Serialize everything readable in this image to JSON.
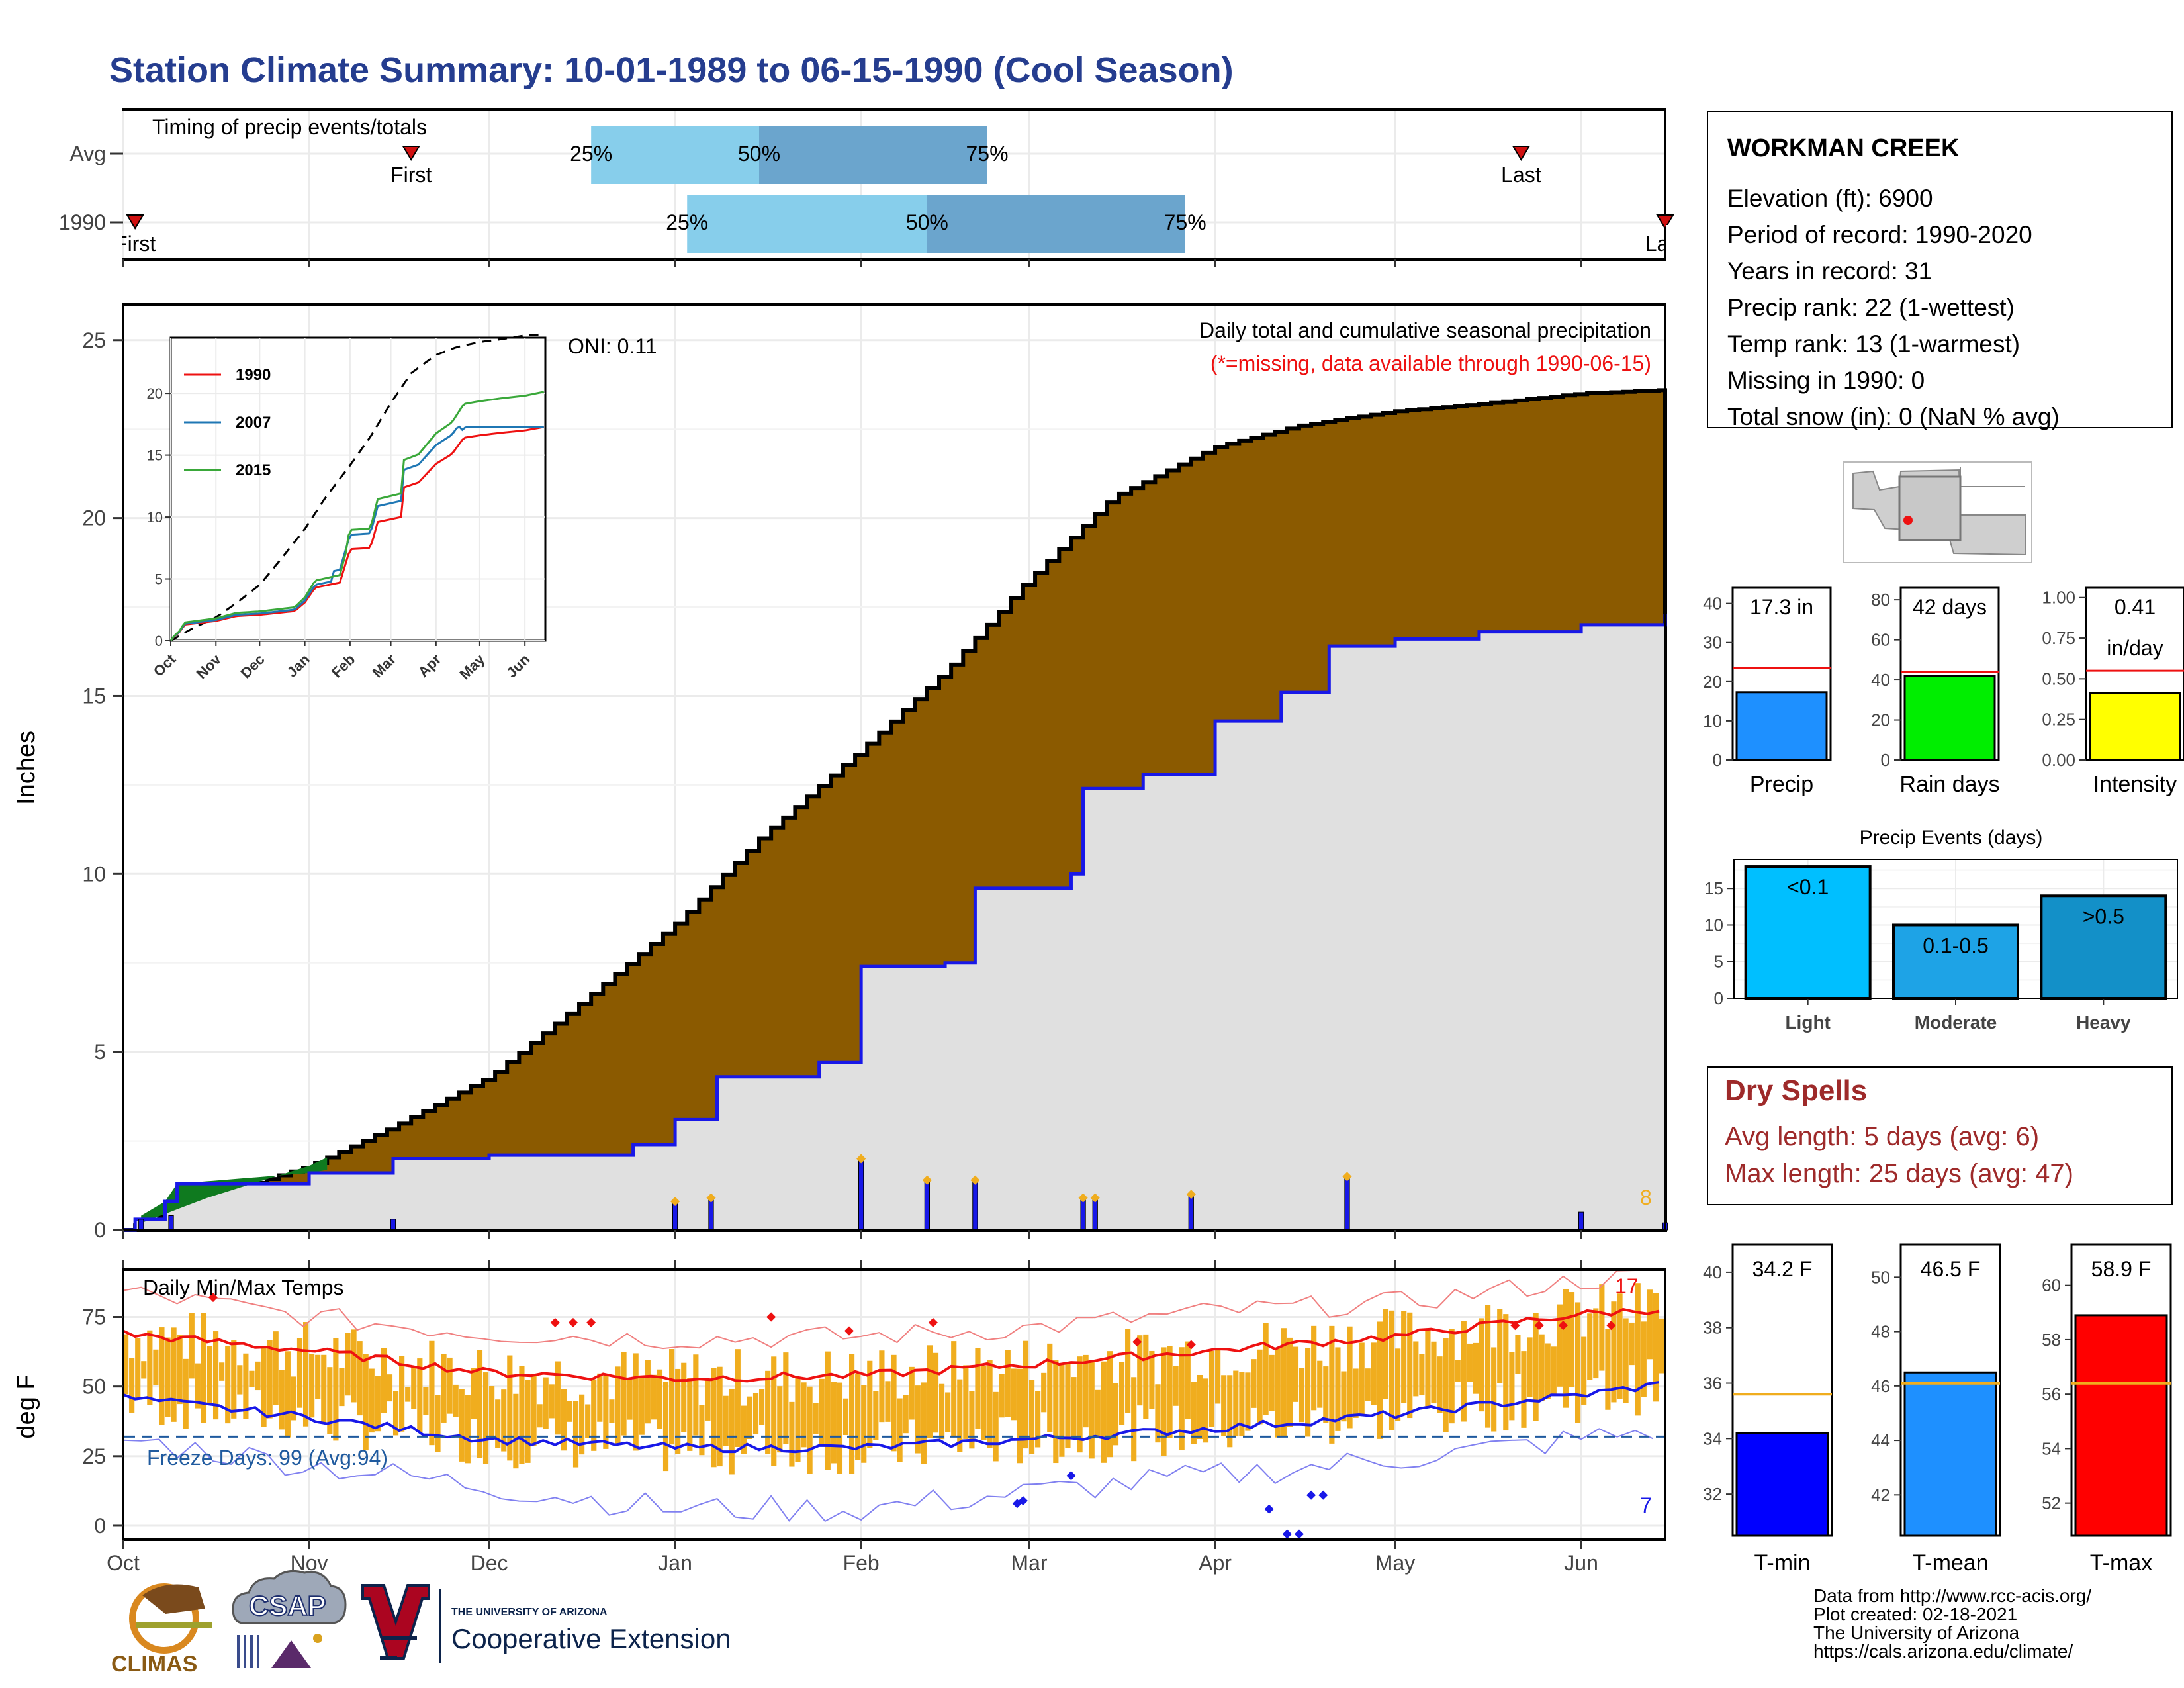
{
  "title": "Station Climate Summary: 10-01-1989 to 06-15-1990 (Cool Season)",
  "colors": {
    "title": "#253d8f",
    "precip_fill": "#8b5a00",
    "normal_fill": "#e0e0e0",
    "blue": "#1818e8",
    "green": "#0f7a1f",
    "orange": "#f0ad1e",
    "red": "#ee1111",
    "dry_text": "#9e2a2a"
  },
  "months": [
    "Oct",
    "Nov",
    "Dec",
    "Jan",
    "Feb",
    "Mar",
    "Apr",
    "May",
    "Jun"
  ],
  "timing": {
    "label": "Timing of precip events/totals",
    "rows": [
      {
        "name": "Avg",
        "q25": "25%",
        "q50": "50%",
        "q75": "75%",
        "p25": "Dec 18",
        "p50": "Jan 15",
        "p75": "Feb 22",
        "first_label": "First",
        "first": "Nov 18",
        "last_label": "Last",
        "last": "May 22"
      },
      {
        "name": "1990",
        "q25": "25%",
        "q50": "50%",
        "q75": "75%",
        "p25": "Jan 3",
        "p50": "Feb 12",
        "p75": "Mar 27",
        "first_label": "First",
        "first": "Oct 3",
        "last_label": "Last",
        "last": "Jun 15"
      }
    ]
  },
  "precip_panel": {
    "ylabel": "Inches",
    "y_ticks": [
      "0",
      "5",
      "10",
      "15",
      "20",
      "25"
    ],
    "ylim": [
      0,
      26
    ],
    "oni": "ONI: 0.11",
    "label1": "Daily total and cumulative seasonal precipitation",
    "label2": "(*=missing, data available through 1990-06-15)",
    "max_daily_label": "8",
    "inset": {
      "y_ticks": [
        "0",
        "5",
        "10",
        "15",
        "20"
      ],
      "months": [
        "Oct",
        "Nov",
        "Dec",
        "Jan",
        "Feb",
        "Mar",
        "Apr",
        "May",
        "Jun"
      ],
      "legend": [
        {
          "name": "1990",
          "color": "#ee1111"
        },
        {
          "name": "2007",
          "color": "#1f77b4"
        },
        {
          "name": "2015",
          "color": "#3aa83a"
        }
      ]
    }
  },
  "chart_data": [
    {
      "type": "area",
      "title": "Daily total and cumulative seasonal precipitation",
      "ylabel": "Inches",
      "x_range": [
        "1989-10-01",
        "1990-06-15"
      ],
      "ylim": [
        0,
        26
      ],
      "series": [
        {
          "name": "Average cumulative",
          "x": [
            "Oct 1",
            "Oct 15",
            "Nov 1",
            "Nov 15",
            "Dec 1",
            "Dec 15",
            "Jan 1",
            "Jan 15",
            "Feb 1",
            "Feb 15",
            "Mar 1",
            "Mar 15",
            "Apr 1",
            "Apr 15",
            "May 1",
            "May 15",
            "Jun 1",
            "Jun 15"
          ],
          "values": [
            0,
            0.9,
            1.8,
            2.9,
            4.3,
            6.2,
            8.6,
            11.0,
            13.5,
            15.7,
            18.3,
            20.6,
            22.0,
            22.6,
            23.0,
            23.2,
            23.5,
            23.6
          ]
        },
        {
          "name": "1990 cumulative",
          "x": [
            "Oct 1",
            "Oct 3",
            "Oct 8",
            "Oct 10",
            "Nov 1",
            "Nov 15",
            "Dec 1",
            "Dec 25",
            "Jan 1",
            "Jan 8",
            "Jan 25",
            "Feb 1",
            "Feb 15",
            "Feb 20",
            "Mar 8",
            "Mar 10",
            "Mar 20",
            "Apr 1",
            "Apr 12",
            "Apr 20",
            "May 1",
            "May 15",
            "Jun 1",
            "Jun 15"
          ],
          "values": [
            0,
            0.3,
            0.8,
            1.3,
            1.6,
            2.0,
            2.1,
            2.4,
            3.1,
            4.3,
            4.7,
            7.4,
            7.5,
            9.6,
            10.0,
            12.4,
            12.8,
            14.3,
            15.1,
            16.4,
            16.6,
            16.8,
            17.0,
            17.3
          ]
        },
        {
          "name": "Daily precip events",
          "x": [
            "Oct 4",
            "Oct 9",
            "Nov 15",
            "Jan 1",
            "Jan 7",
            "Feb 1",
            "Feb 12",
            "Feb 20",
            "Mar 10",
            "Mar 12",
            "Mar 28",
            "Apr 23",
            "Jun 1",
            "Jun 15"
          ],
          "values": [
            0.3,
            0.4,
            0.3,
            0.8,
            0.9,
            2.0,
            1.4,
            1.4,
            0.9,
            0.9,
            1.0,
            1.5,
            0.5,
            0.2
          ]
        }
      ]
    },
    {
      "type": "line",
      "title": "Daily Min/Max Temps",
      "ylabel": "deg F",
      "ylim": [
        -5,
        92
      ],
      "series": [
        {
          "name": "Avg max",
          "x": [
            "Oct 1",
            "Nov 1",
            "Dec 1",
            "Jan 1",
            "Feb 1",
            "Mar 1",
            "Apr 1",
            "May 1",
            "Jun 1",
            "Jun 15"
          ],
          "values": [
            69,
            63,
            55,
            53,
            54,
            58,
            63,
            68,
            76,
            78
          ]
        },
        {
          "name": "Avg min",
          "x": [
            "Oct 1",
            "Nov 1",
            "Dec 1",
            "Jan 1",
            "Feb 1",
            "Mar 1",
            "Apr 1",
            "May 1",
            "Jun 1",
            "Jun 15"
          ],
          "values": [
            46,
            39,
            31,
            28,
            28,
            31,
            35,
            40,
            47,
            51
          ]
        },
        {
          "name": "Record max",
          "x": [
            "Oct 1",
            "Nov 1",
            "Dec 1",
            "Jan 1",
            "Feb 1",
            "Mar 1",
            "Apr 1",
            "May 1",
            "Jun 1",
            "Jun 15"
          ],
          "values": [
            84,
            75,
            69,
            67,
            68,
            71,
            77,
            80,
            88,
            90
          ]
        },
        {
          "name": "Record min",
          "x": [
            "Oct 1",
            "Nov 1",
            "Dec 1",
            "Jan 1",
            "Feb 1",
            "Mar 1",
            "Apr 1",
            "May 1",
            "Jun 1",
            "Jun 15"
          ],
          "values": [
            31,
            22,
            14,
            6,
            6,
            12,
            18,
            24,
            31,
            35
          ]
        }
      ],
      "freeze_line": 32
    }
  ],
  "temp_panel": {
    "label": "Daily Min/Max Temps",
    "ylabel": "deg F",
    "y_ticks": [
      "0",
      "25",
      "50",
      "75"
    ],
    "freeze": "Freeze Days: 99 (Avg:94)",
    "max_count": "17",
    "min_count": "7"
  },
  "station": {
    "name": "WORKMAN CREEK",
    "lines": [
      "Elevation (ft): 6900",
      "Period of record: 1990-2020",
      "Years in record: 31",
      "Precip rank: 22 (1-wettest)",
      "Temp rank: 13 (1-warmest)",
      "Missing in 1990: 0",
      "Total snow (in): 0 (NaN % avg)"
    ]
  },
  "mini_bars": [
    {
      "label": "Precip",
      "value_text": "17.3 in",
      "value": 17.3,
      "avg": 23.6,
      "ymax": 44,
      "ticks": [
        "0",
        "10",
        "20",
        "30",
        "40"
      ],
      "color": "#1e90ff"
    },
    {
      "label": "Rain days",
      "value_text": "42 days",
      "value": 42,
      "avg": 44,
      "ymax": 86,
      "ticks": [
        "0",
        "20",
        "40",
        "60",
        "80"
      ],
      "color": "#00ee00"
    },
    {
      "label": "Intensity",
      "value_text": "0.41",
      "value_text2": "in/day",
      "value": 0.41,
      "avg": 0.55,
      "ymax": 1.06,
      "ticks": [
        "0.00",
        "0.25",
        "0.50",
        "0.75",
        "1.00"
      ],
      "color": "#ffff00"
    }
  ],
  "events": {
    "title": "Precip Events (days)",
    "ticks": [
      "0",
      "5",
      "10",
      "15"
    ],
    "ymax": 19,
    "bars": [
      {
        "cat": "Light",
        "label": "<0.1",
        "value": 18,
        "color": "#00bfff"
      },
      {
        "cat": "Moderate",
        "label": "0.1-0.5",
        "value": 10,
        "color": "#1ea3e6"
      },
      {
        "cat": "Heavy",
        "label": ">0.5",
        "value": 14,
        "color": "#1390c8"
      }
    ]
  },
  "dry_spells": {
    "title": "Dry Spells",
    "avg": "Avg length: 5 days (avg: 6)",
    "max": "Max length: 25 days (avg: 47)"
  },
  "temp_bars": [
    {
      "label": "T-min",
      "value_text": "34.2 F",
      "value": 34.2,
      "avg": 35.6,
      "ymin": 30.5,
      "ymax": 41,
      "ticks": [
        "32",
        "34",
        "36",
        "38",
        "40"
      ],
      "color": "#0000ff"
    },
    {
      "label": "T-mean",
      "value_text": "46.5 F",
      "value": 46.5,
      "avg": 46.1,
      "ymin": 40.5,
      "ymax": 51.2,
      "ticks": [
        "42",
        "44",
        "46",
        "48",
        "50"
      ],
      "color": "#1e90ff"
    },
    {
      "label": "T-max",
      "value_text": "58.9 F",
      "value": 58.9,
      "avg": 56.4,
      "ymin": 50.8,
      "ymax": 61.5,
      "ticks": [
        "52",
        "54",
        "56",
        "58",
        "60"
      ],
      "color": "#ff0000"
    }
  ],
  "footer": {
    "logos": [
      "CLIMAS",
      "CSAP"
    ],
    "ua_small": "THE UNIVERSITY OF ARIZONA",
    "ua_big": "Cooperative Extension",
    "credits": [
      "Data from http://www.rcc-acis.org/",
      "Plot created: 02-18-2021",
      "The University of Arizona",
      "https://cals.arizona.edu/climate/"
    ]
  }
}
